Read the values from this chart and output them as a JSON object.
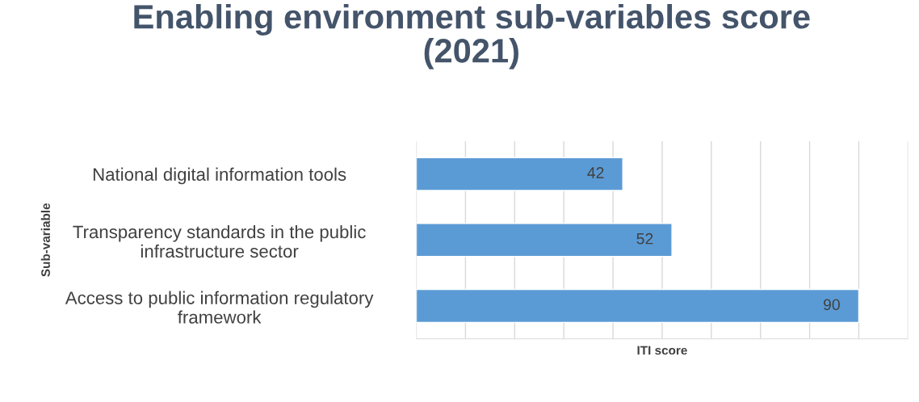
{
  "chart_data": {
    "type": "bar",
    "orientation": "horizontal",
    "title": "Enabling environment sub-variables score\n(2021)",
    "xlabel": "ITI score",
    "ylabel": "Sub-variable",
    "categories": [
      "National digital information tools",
      "Transparency standards in the public\ninfrastructure sector",
      "Access to public information regulatory\nframework"
    ],
    "values": [
      42,
      52,
      90
    ],
    "color": "#5b9bd5",
    "data_labels": true,
    "xlim": [
      0,
      100
    ],
    "xticks": [
      {
        "value": 0,
        "label": null
      },
      {
        "value": 10,
        "label": null
      },
      {
        "value": 20,
        "label": null
      },
      {
        "value": 30,
        "label": null
      },
      {
        "value": 40,
        "label": null
      },
      {
        "value": 50,
        "label": null
      },
      {
        "value": 60,
        "label": null
      },
      {
        "value": 70,
        "label": null
      },
      {
        "value": 80,
        "label": null
      },
      {
        "value": 90,
        "label": null
      },
      {
        "value": 100,
        "label": null
      }
    ],
    "grid": "x",
    "tick_labels": "y",
    "legend": false
  }
}
